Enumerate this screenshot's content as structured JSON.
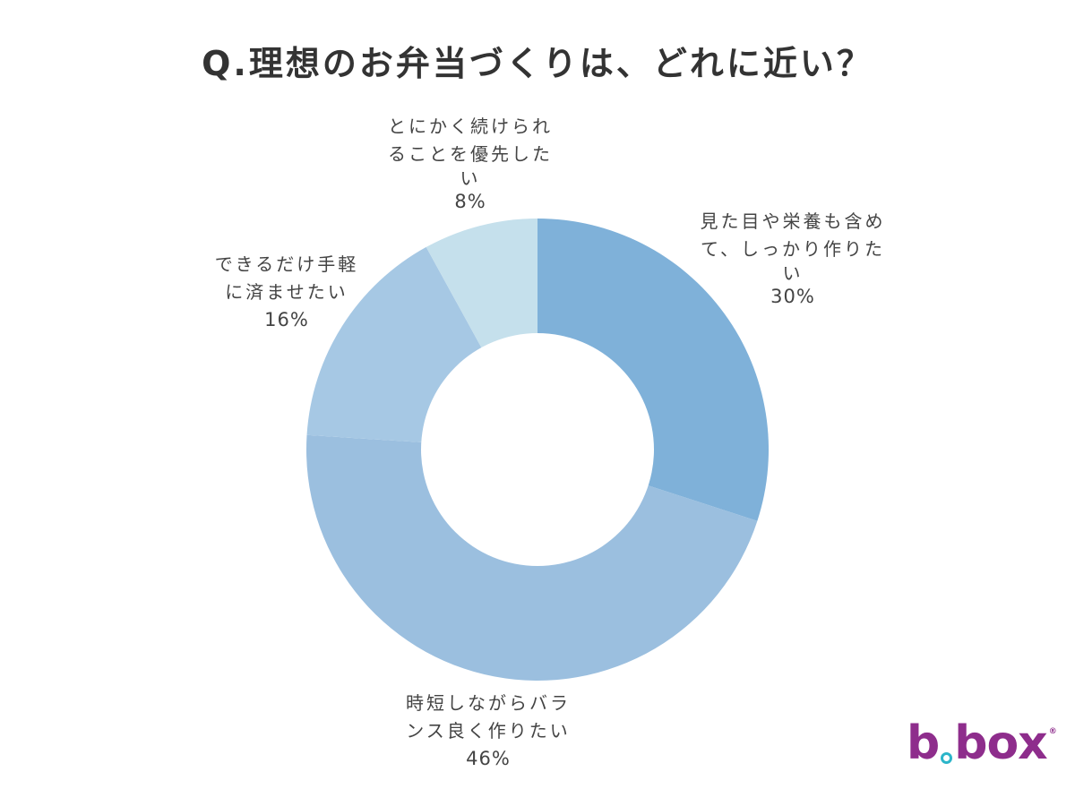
{
  "title": "Q.理想のお弁当づくりは、どれに近い？",
  "chart_data": {
    "type": "pie",
    "subtype": "donut",
    "title": "Q.理想のお弁当づくりは、どれに近い？",
    "categories": [
      "見た目や栄養も含めて、しっかり作りたい",
      "時短しながらバランス良く作りたい",
      "できるだけ手軽に済ませたい",
      "とにかく続けられることを優先したい"
    ],
    "values": [
      30,
      46,
      16,
      8
    ],
    "unit": "%",
    "colors": [
      "#7fb1d9",
      "#9bbfdf",
      "#a6c8e4",
      "#c5e0ec"
    ],
    "start_angle": "12 o'clock, clockwise",
    "legend": "none (labels placed around slices)"
  },
  "labels": [
    {
      "line1": "見た目や栄養も含め",
      "line2": "て、しっかり作りた",
      "line3": "い",
      "pct": "30%"
    },
    {
      "line1": "時短しながらバラ",
      "line2": "ンス良く作りたい",
      "line3": "",
      "pct": "46%"
    },
    {
      "line1": "できるだけ手軽",
      "line2": "に済ませたい",
      "line3": "",
      "pct": "16%"
    },
    {
      "line1": "とにかく続けられ",
      "line2": "ることを優先した",
      "line3": "い",
      "pct": "8%"
    }
  ],
  "logo": {
    "text_b": "b",
    "text_box": "box",
    "registered": "®"
  }
}
